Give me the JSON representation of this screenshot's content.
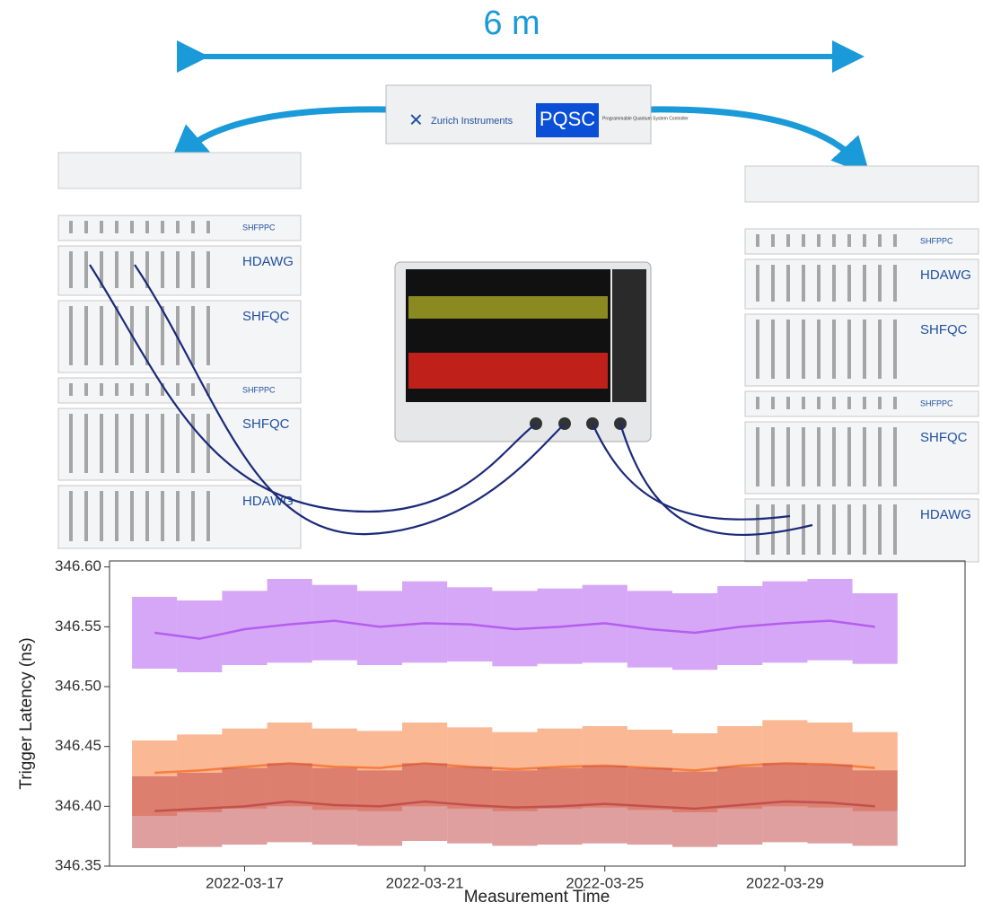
{
  "diagram": {
    "distance": "6 m",
    "pqsc": {
      "brand": "Zurich Instruments",
      "name": "PQSC",
      "description": "Programmable Quantum System Controller"
    },
    "racks": {
      "left": [
        "SHFPPC",
        "HDAWG",
        "SHFQC",
        "SHFPPC",
        "SHFQC",
        "HDAWG"
      ],
      "right": [
        "SHFPPC",
        "HDAWG",
        "SHFQC",
        "SHFPPC",
        "SHFQC",
        "HDAWG"
      ]
    }
  },
  "chart_data": {
    "type": "line",
    "xlabel": "Measurement Time",
    "ylabel": "Trigger Latency (ns)",
    "x": [
      "2022-03-15",
      "2022-03-16",
      "2022-03-17",
      "2022-03-18",
      "2022-03-19",
      "2022-03-20",
      "2022-03-21",
      "2022-03-22",
      "2022-03-23",
      "2022-03-24",
      "2022-03-25",
      "2022-03-26",
      "2022-03-27",
      "2022-03-28",
      "2022-03-29",
      "2022-03-30",
      "2022-03-31"
    ],
    "xlim": [
      "2022-03-14",
      "2022-04-02"
    ],
    "xticks": [
      "2022-03-17",
      "2022-03-21",
      "2022-03-25",
      "2022-03-29"
    ],
    "ylim": [
      346.35,
      346.605
    ],
    "yticks": [
      346.35,
      {
        "value": 346.4,
        "label": "346.40"
      },
      346.45,
      {
        "value": 346.5,
        "label": "346.50"
      },
      346.55,
      {
        "value": 346.6,
        "label": "346.60"
      }
    ],
    "series": [
      {
        "color": "#b45ef0",
        "values": [
          346.545,
          346.54,
          346.548,
          346.552,
          346.555,
          346.55,
          346.553,
          346.552,
          346.548,
          346.55,
          346.553,
          346.548,
          346.545,
          346.55,
          346.553,
          346.555,
          346.55
        ],
        "low": [
          346.515,
          346.512,
          346.518,
          346.52,
          346.522,
          346.518,
          346.52,
          346.521,
          346.517,
          346.519,
          346.52,
          346.516,
          346.514,
          346.518,
          346.52,
          346.522,
          346.519
        ],
        "high": [
          346.575,
          346.572,
          346.58,
          346.59,
          346.585,
          346.58,
          346.588,
          346.583,
          346.58,
          346.582,
          346.585,
          346.58,
          346.578,
          346.584,
          346.588,
          346.59,
          346.578
        ]
      },
      {
        "color": "#f57e3e",
        "values": [
          346.428,
          346.43,
          346.433,
          346.436,
          346.433,
          346.432,
          346.436,
          346.433,
          346.431,
          346.433,
          346.434,
          346.432,
          346.43,
          346.434,
          346.436,
          346.435,
          346.432
        ],
        "low": [
          346.392,
          346.395,
          346.398,
          346.4,
          346.397,
          346.396,
          346.4,
          346.398,
          346.396,
          346.398,
          346.399,
          346.397,
          346.395,
          346.398,
          346.4,
          346.399,
          346.396
        ],
        "high": [
          346.455,
          346.46,
          346.465,
          346.47,
          346.465,
          346.463,
          346.47,
          346.466,
          346.462,
          346.465,
          346.467,
          346.464,
          346.461,
          346.467,
          346.472,
          346.47,
          346.462
        ]
      },
      {
        "color": "#c2504f",
        "values": [
          346.396,
          346.398,
          346.4,
          346.404,
          346.401,
          346.4,
          346.404,
          346.401,
          346.399,
          346.4,
          346.402,
          346.4,
          346.398,
          346.401,
          346.404,
          346.403,
          346.4
        ],
        "low": [
          346.365,
          346.366,
          346.368,
          346.37,
          346.368,
          346.367,
          346.371,
          346.369,
          346.367,
          346.368,
          346.369,
          346.368,
          346.366,
          346.368,
          346.37,
          346.369,
          346.367
        ],
        "high": [
          346.425,
          346.428,
          346.432,
          346.436,
          346.432,
          346.43,
          346.436,
          346.433,
          346.43,
          346.432,
          346.434,
          346.432,
          346.429,
          346.433,
          346.436,
          346.435,
          346.43
        ]
      }
    ]
  }
}
